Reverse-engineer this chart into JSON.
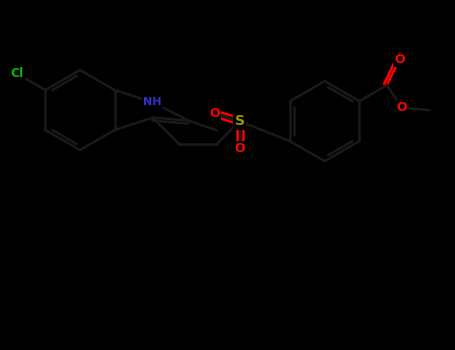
{
  "background_color": "#000000",
  "bond_color": "#1a1a1a",
  "bond_width": 1.8,
  "atom_colors": {
    "Cl": "#00bb00",
    "N": "#3333cc",
    "S": "#999900",
    "O": "#ff0000",
    "C": "#1a1a1a"
  },
  "figsize": [
    4.55,
    3.5
  ],
  "dpi": 100,
  "xlim": [
    0,
    9.1
  ],
  "ylim": [
    0,
    7.0
  ]
}
